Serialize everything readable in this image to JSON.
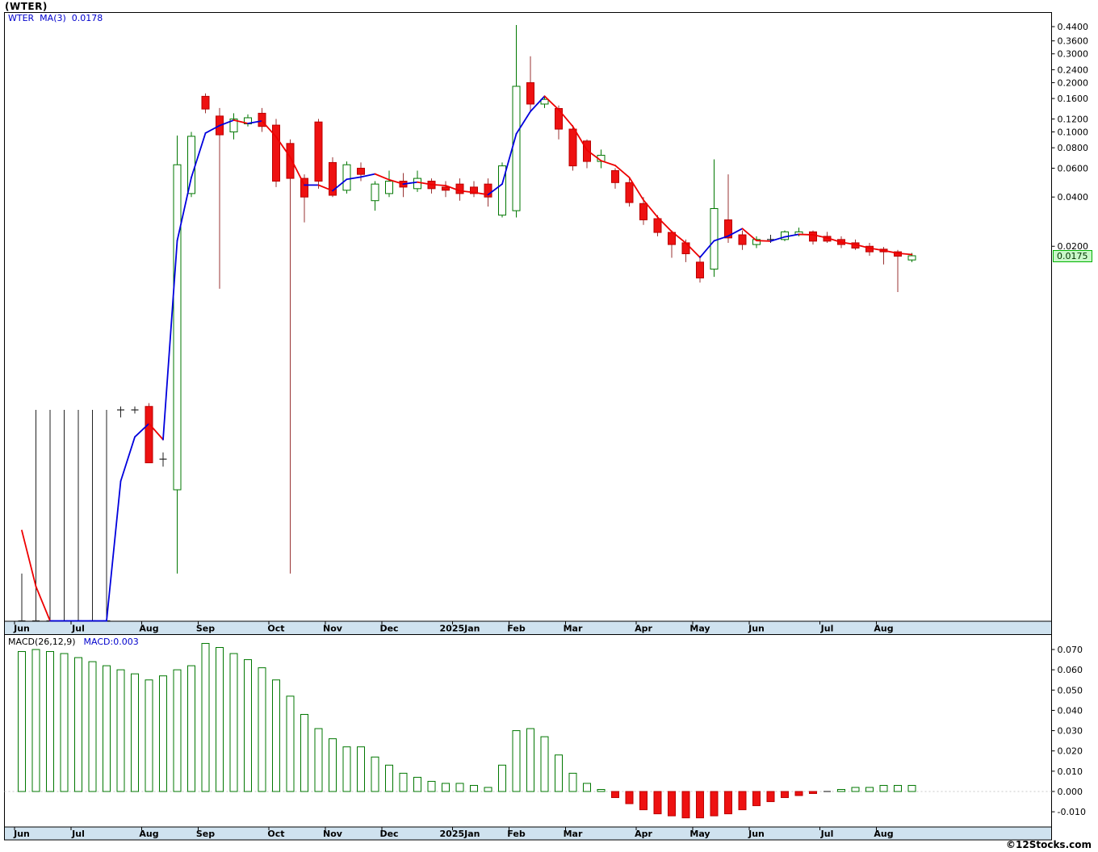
{
  "window": {
    "title": "(WTER)"
  },
  "legend": {
    "symbol_ma": "WTER  MA(3)  0.0178"
  },
  "macd_legend": {
    "left": "MACD(26,12,9)",
    "right": "MACD:0.003"
  },
  "price_badge": "0.0175",
  "watermark": "©12Stocks.com",
  "colors": {
    "up_stroke": "#007700",
    "down_fill": "#ee1111",
    "down_stroke": "#bb0000",
    "down_wick": "#993333",
    "ma_up": "#0000dd",
    "ma_down": "#ee0000",
    "axis_strip": "#cfe2ef",
    "legend_blue": "#0000cc",
    "badge_bg": "#c9f7c9",
    "badge_border": "#00b300"
  },
  "chart_data": [
    {
      "type": "candlestick",
      "title": "WTER weekly candlestick chart with MA(3)",
      "scale": "log",
      "ylim": [
        0.0001,
        0.46
      ],
      "last_price": 0.0175,
      "ma_period": 3,
      "ma_last": 0.0178,
      "ma_seed": [
        0.0007,
        0.0003
      ],
      "y_ticks": [
        "0.4400",
        "0.3600",
        "0.3000",
        "0.2400",
        "0.2000",
        "0.1600",
        "0.1200",
        "0.1000",
        "0.0800",
        "0.0600",
        "0.0400",
        "0.0200"
      ],
      "x_axis_months": [
        {
          "label": "Jun",
          "i": 0
        },
        {
          "label": "Jul",
          "i": 4
        },
        {
          "label": "Aug",
          "i": 9
        },
        {
          "label": "Sep",
          "i": 13
        },
        {
          "label": "Oct",
          "i": 18
        },
        {
          "label": "Nov",
          "i": 22
        },
        {
          "label": "Dec",
          "i": 26
        },
        {
          "label": "2025Jan",
          "i": 31
        },
        {
          "label": "Feb",
          "i": 35
        },
        {
          "label": "Mar",
          "i": 39
        },
        {
          "label": "Apr",
          "i": 44
        },
        {
          "label": "May",
          "i": 48
        },
        {
          "label": "Jun",
          "i": 52
        },
        {
          "label": "Jul",
          "i": 57
        },
        {
          "label": "Aug",
          "i": 61
        }
      ],
      "candles": [
        {
          "d": "2024-06-03",
          "o": 0.0001,
          "h": 0.0002,
          "l": 0.0001,
          "c": 0.0001
        },
        {
          "d": "2024-06-10",
          "o": 0.0001,
          "h": 0.002,
          "l": 0.0001,
          "c": 0.0001
        },
        {
          "d": "2024-06-17",
          "o": 0.0001,
          "h": 0.002,
          "l": 0.0001,
          "c": 0.0001
        },
        {
          "d": "2024-06-24",
          "o": 0.0001,
          "h": 0.002,
          "l": 0.0001,
          "c": 0.0001
        },
        {
          "d": "2024-07-01",
          "o": 0.0001,
          "h": 0.002,
          "l": 0.0001,
          "c": 0.0001
        },
        {
          "d": "2024-07-08",
          "o": 0.0001,
          "h": 0.002,
          "l": 0.0001,
          "c": 0.0001
        },
        {
          "d": "2024-07-15",
          "o": 0.0001,
          "h": 0.002,
          "l": 0.0001,
          "c": 0.0001
        },
        {
          "d": "2024-07-22",
          "o": 0.002,
          "h": 0.0021,
          "l": 0.0018,
          "c": 0.002
        },
        {
          "d": "2024-07-29",
          "o": 0.002,
          "h": 0.0021,
          "l": 0.0019,
          "c": 0.002
        },
        {
          "d": "2024-08-05",
          "o": 0.0021,
          "h": 0.0022,
          "l": 0.00095,
          "c": 0.00095
        },
        {
          "d": "2024-08-12",
          "o": 0.001,
          "h": 0.0011,
          "l": 0.0009,
          "c": 0.001
        },
        {
          "d": "2024-08-19",
          "o": 0.00065,
          "h": 0.095,
          "l": 0.0002,
          "c": 0.063
        },
        {
          "d": "2024-08-26",
          "o": 0.042,
          "h": 0.1,
          "l": 0.04,
          "c": 0.094
        },
        {
          "d": "2024-09-02",
          "o": 0.165,
          "h": 0.172,
          "l": 0.13,
          "c": 0.138
        },
        {
          "d": "2024-09-09",
          "o": 0.125,
          "h": 0.14,
          "l": 0.011,
          "c": 0.096
        },
        {
          "d": "2024-09-16",
          "o": 0.1,
          "h": 0.13,
          "l": 0.09,
          "c": 0.12
        },
        {
          "d": "2024-09-23",
          "o": 0.112,
          "h": 0.128,
          "l": 0.108,
          "c": 0.122
        },
        {
          "d": "2024-09-30",
          "o": 0.13,
          "h": 0.14,
          "l": 0.1,
          "c": 0.108
        },
        {
          "d": "2024-10-07",
          "o": 0.11,
          "h": 0.12,
          "l": 0.046,
          "c": 0.05
        },
        {
          "d": "2024-10-14",
          "o": 0.085,
          "h": 0.09,
          "l": 0.0002,
          "c": 0.052
        },
        {
          "d": "2024-10-21",
          "o": 0.052,
          "h": 0.055,
          "l": 0.028,
          "c": 0.04
        },
        {
          "d": "2024-10-28",
          "o": 0.115,
          "h": 0.12,
          "l": 0.045,
          "c": 0.05
        },
        {
          "d": "2024-11-04",
          "o": 0.065,
          "h": 0.07,
          "l": 0.04,
          "c": 0.041
        },
        {
          "d": "2024-11-11",
          "o": 0.044,
          "h": 0.066,
          "l": 0.042,
          "c": 0.063
        },
        {
          "d": "2024-11-18",
          "o": 0.06,
          "h": 0.065,
          "l": 0.05,
          "c": 0.055
        },
        {
          "d": "2024-11-25",
          "o": 0.038,
          "h": 0.05,
          "l": 0.033,
          "c": 0.048
        },
        {
          "d": "2024-12-02",
          "o": 0.042,
          "h": 0.058,
          "l": 0.04,
          "c": 0.05
        },
        {
          "d": "2024-12-09",
          "o": 0.05,
          "h": 0.056,
          "l": 0.04,
          "c": 0.046
        },
        {
          "d": "2024-12-16",
          "o": 0.045,
          "h": 0.058,
          "l": 0.043,
          "c": 0.052
        },
        {
          "d": "2024-12-23",
          "o": 0.05,
          "h": 0.052,
          "l": 0.042,
          "c": 0.045
        },
        {
          "d": "2024-12-30",
          "o": 0.046,
          "h": 0.05,
          "l": 0.04,
          "c": 0.044
        },
        {
          "d": "2025-01-06",
          "o": 0.048,
          "h": 0.052,
          "l": 0.038,
          "c": 0.042
        },
        {
          "d": "2025-01-13",
          "o": 0.046,
          "h": 0.05,
          "l": 0.04,
          "c": 0.042
        },
        {
          "d": "2025-01-20",
          "o": 0.048,
          "h": 0.052,
          "l": 0.035,
          "c": 0.04
        },
        {
          "d": "2025-01-27",
          "o": 0.031,
          "h": 0.065,
          "l": 0.03,
          "c": 0.062
        },
        {
          "d": "2025-02-03",
          "o": 0.033,
          "h": 0.45,
          "l": 0.03,
          "c": 0.19
        },
        {
          "d": "2025-02-10",
          "o": 0.2,
          "h": 0.29,
          "l": 0.135,
          "c": 0.148
        },
        {
          "d": "2025-02-17",
          "o": 0.148,
          "h": 0.165,
          "l": 0.14,
          "c": 0.158
        },
        {
          "d": "2025-02-24",
          "o": 0.139,
          "h": 0.145,
          "l": 0.09,
          "c": 0.104
        },
        {
          "d": "2025-03-03",
          "o": 0.104,
          "h": 0.11,
          "l": 0.058,
          "c": 0.062
        },
        {
          "d": "2025-03-10",
          "o": 0.088,
          "h": 0.09,
          "l": 0.06,
          "c": 0.066
        },
        {
          "d": "2025-03-17",
          "o": 0.066,
          "h": 0.078,
          "l": 0.06,
          "c": 0.072
        },
        {
          "d": "2025-03-24",
          "o": 0.058,
          "h": 0.06,
          "l": 0.045,
          "c": 0.049
        },
        {
          "d": "2025-03-31",
          "o": 0.049,
          "h": 0.052,
          "l": 0.035,
          "c": 0.037
        },
        {
          "d": "2025-04-07",
          "o": 0.0365,
          "h": 0.04,
          "l": 0.027,
          "c": 0.029
        },
        {
          "d": "2025-04-14",
          "o": 0.0295,
          "h": 0.031,
          "l": 0.023,
          "c": 0.0243
        },
        {
          "d": "2025-04-21",
          "o": 0.0243,
          "h": 0.025,
          "l": 0.017,
          "c": 0.0205
        },
        {
          "d": "2025-04-28",
          "o": 0.021,
          "h": 0.022,
          "l": 0.016,
          "c": 0.018
        },
        {
          "d": "2025-05-05",
          "o": 0.016,
          "h": 0.0175,
          "l": 0.012,
          "c": 0.0128
        },
        {
          "d": "2025-05-12",
          "o": 0.0145,
          "h": 0.068,
          "l": 0.013,
          "c": 0.034
        },
        {
          "d": "2025-05-19",
          "o": 0.029,
          "h": 0.055,
          "l": 0.021,
          "c": 0.0225
        },
        {
          "d": "2025-05-26",
          "o": 0.0235,
          "h": 0.025,
          "l": 0.019,
          "c": 0.0205
        },
        {
          "d": "2025-06-02",
          "o": 0.0205,
          "h": 0.023,
          "l": 0.0195,
          "c": 0.022
        },
        {
          "d": "2025-06-09",
          "o": 0.022,
          "h": 0.0235,
          "l": 0.021,
          "c": 0.022
        },
        {
          "d": "2025-06-16",
          "o": 0.022,
          "h": 0.025,
          "l": 0.0215,
          "c": 0.0245
        },
        {
          "d": "2025-06-23",
          "o": 0.0235,
          "h": 0.026,
          "l": 0.023,
          "c": 0.0245
        },
        {
          "d": "2025-06-30",
          "o": 0.0245,
          "h": 0.025,
          "l": 0.0205,
          "c": 0.0215
        },
        {
          "d": "2025-07-07",
          "o": 0.023,
          "h": 0.0245,
          "l": 0.021,
          "c": 0.0215
        },
        {
          "d": "2025-07-14",
          "o": 0.022,
          "h": 0.023,
          "l": 0.0195,
          "c": 0.0205
        },
        {
          "d": "2025-07-21",
          "o": 0.021,
          "h": 0.022,
          "l": 0.019,
          "c": 0.0195
        },
        {
          "d": "2025-07-28",
          "o": 0.02,
          "h": 0.021,
          "l": 0.0175,
          "c": 0.0185
        },
        {
          "d": "2025-08-04",
          "o": 0.0192,
          "h": 0.0198,
          "l": 0.0155,
          "c": 0.0185
        },
        {
          "d": "2025-08-11",
          "o": 0.0185,
          "h": 0.019,
          "l": 0.0105,
          "c": 0.0174
        },
        {
          "d": "2025-08-18",
          "o": 0.0165,
          "h": 0.0182,
          "l": 0.016,
          "c": 0.0175
        }
      ]
    },
    {
      "type": "bar",
      "title": "MACD(26,12,9) histogram",
      "ylim": [
        -0.015,
        0.075
      ],
      "last_value": 0.003,
      "y_ticks": [
        "0.070",
        "0.060",
        "0.050",
        "0.040",
        "0.030",
        "0.020",
        "0.010",
        "0.000",
        "-0.010"
      ],
      "values": [
        0.069,
        0.07,
        0.069,
        0.068,
        0.066,
        0.064,
        0.062,
        0.06,
        0.058,
        0.055,
        0.057,
        0.06,
        0.062,
        0.073,
        0.071,
        0.068,
        0.065,
        0.061,
        0.055,
        0.047,
        0.038,
        0.031,
        0.026,
        0.022,
        0.022,
        0.017,
        0.013,
        0.009,
        0.007,
        0.005,
        0.004,
        0.004,
        0.003,
        0.002,
        0.013,
        0.03,
        0.031,
        0.027,
        0.018,
        0.009,
        0.004,
        0.001,
        -0.003,
        -0.006,
        -0.009,
        -0.011,
        -0.012,
        -0.013,
        -0.013,
        -0.012,
        -0.011,
        -0.009,
        -0.007,
        -0.005,
        -0.003,
        -0.002,
        -0.001,
        0.0,
        0.001,
        0.002,
        0.002,
        0.003,
        0.003,
        0.003
      ]
    }
  ]
}
